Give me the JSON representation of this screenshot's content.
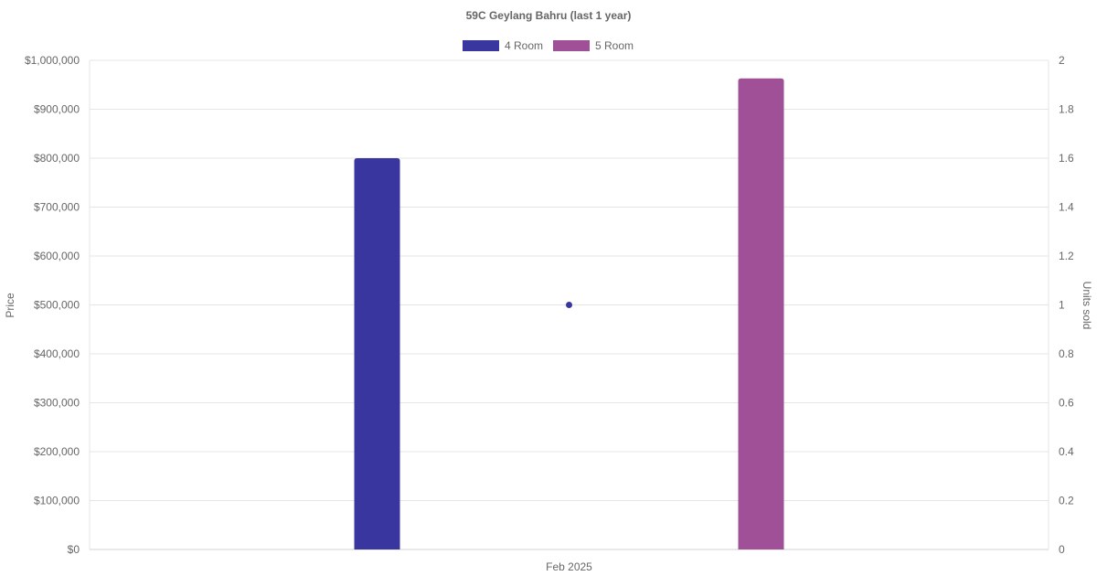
{
  "chart_data": {
    "type": "bar",
    "title": "59C Geylang Bahru (last 1 year)",
    "categories": [
      "Feb 2025"
    ],
    "series": [
      {
        "name": "4 Room",
        "type": "bar",
        "axis": "left",
        "color": "#3a36a0",
        "values": [
          800000
        ]
      },
      {
        "name": "5 Room",
        "type": "bar",
        "axis": "left",
        "color": "#9f5097",
        "values": [
          963000
        ]
      },
      {
        "name": "",
        "type": "line",
        "axis": "right",
        "color": "#3a36a0",
        "values": [
          1
        ]
      }
    ],
    "y_left": {
      "label": "Price",
      "ylim": [
        0,
        1000000
      ],
      "ticks": [
        "$0",
        "$100,000",
        "$200,000",
        "$300,000",
        "$400,000",
        "$500,000",
        "$600,000",
        "$700,000",
        "$800,000",
        "$900,000",
        "$1,000,000"
      ]
    },
    "y_right": {
      "label": "Units sold",
      "ylim": [
        0,
        2
      ],
      "ticks": [
        "0",
        "0.2",
        "0.4",
        "0.6",
        "0.8",
        "1",
        "1.2",
        "1.4",
        "1.6",
        "1.8",
        "2"
      ]
    },
    "grid": true,
    "legend_position": "top-center"
  }
}
